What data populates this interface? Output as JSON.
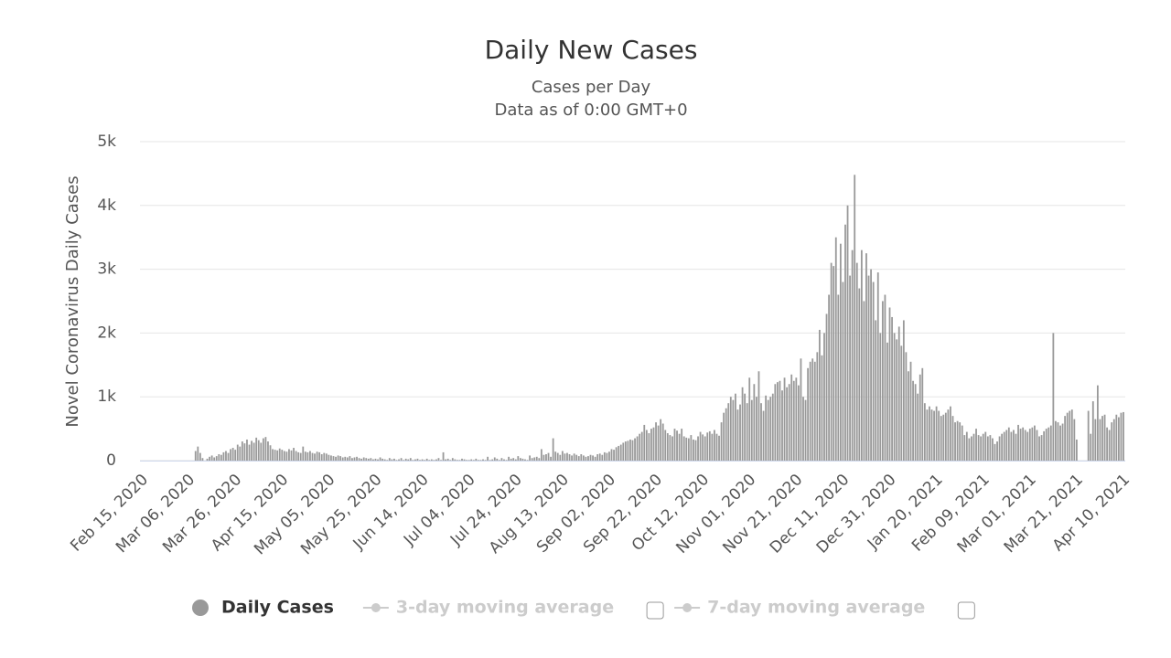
{
  "chart_data": {
    "type": "bar",
    "title": "Daily New Cases",
    "subtitle": [
      "Cases per Day",
      "Data as of 0:00 GMT+0"
    ],
    "y_axis_label": "Novel Coronavirus Daily Cases",
    "ylim": [
      0,
      5000
    ],
    "yticks": [
      0,
      {
        "value": 1000,
        "label": "1k"
      },
      {
        "value": 2000,
        "label": "2k"
      },
      {
        "value": 3000,
        "label": "3k"
      },
      {
        "value": 4000,
        "label": "4k"
      },
      {
        "value": 5000,
        "label": "5k"
      }
    ],
    "grid": true,
    "categories": [
      "Feb 15, 2020",
      null,
      null,
      null,
      null,
      null,
      null,
      null,
      null,
      null,
      null,
      null,
      null,
      null,
      null,
      null,
      null,
      null,
      null,
      null,
      "Mar 06, 2020",
      null,
      null,
      null,
      null,
      null,
      null,
      null,
      null,
      null,
      null,
      null,
      null,
      null,
      null,
      null,
      null,
      null,
      null,
      null,
      "Mar 26, 2020",
      null,
      null,
      null,
      null,
      null,
      null,
      null,
      null,
      null,
      null,
      null,
      null,
      null,
      null,
      null,
      null,
      null,
      null,
      null,
      "Apr 15, 2020",
      null,
      null,
      null,
      null,
      null,
      null,
      null,
      null,
      null,
      null,
      null,
      null,
      null,
      null,
      null,
      null,
      null,
      null,
      null,
      "May 05, 2020",
      null,
      null,
      null,
      null,
      null,
      null,
      null,
      null,
      null,
      null,
      null,
      null,
      null,
      null,
      null,
      null,
      null,
      null,
      null,
      "May 25, 2020",
      null,
      null,
      null,
      null,
      null,
      null,
      null,
      null,
      null,
      null,
      null,
      null,
      null,
      null,
      null,
      null,
      null,
      null,
      null,
      "Jun 14, 2020",
      null,
      null,
      null,
      null,
      null,
      null,
      null,
      null,
      null,
      null,
      null,
      null,
      null,
      null,
      null,
      null,
      null,
      null,
      null,
      "Jul 04, 2020",
      null,
      null,
      null,
      null,
      null,
      null,
      null,
      null,
      null,
      null,
      null,
      null,
      null,
      null,
      null,
      null,
      null,
      null,
      null,
      "Jul 24, 2020",
      null,
      null,
      null,
      null,
      null,
      null,
      null,
      null,
      null,
      null,
      null,
      null,
      null,
      null,
      null,
      null,
      null,
      null,
      null,
      "Aug 13, 2020",
      null,
      null,
      null,
      null,
      null,
      null,
      null,
      null,
      null,
      null,
      null,
      null,
      null,
      null,
      null,
      null,
      null,
      null,
      null,
      "Sep 02, 2020",
      null,
      null,
      null,
      null,
      null,
      null,
      null,
      null,
      null,
      null,
      null,
      null,
      null,
      null,
      null,
      null,
      null,
      null,
      null,
      "Sep 22, 2020",
      null,
      null,
      null,
      null,
      null,
      null,
      null,
      null,
      null,
      null,
      null,
      null,
      null,
      null,
      null,
      null,
      null,
      null,
      null,
      "Oct 12, 2020",
      null,
      null,
      null,
      null,
      null,
      null,
      null,
      null,
      null,
      null,
      null,
      null,
      null,
      null,
      null,
      null,
      null,
      null,
      null,
      "Nov 01, 2020",
      null,
      null,
      null,
      null,
      null,
      null,
      null,
      null,
      null,
      null,
      null,
      null,
      null,
      null,
      null,
      null,
      null,
      null,
      null,
      "Nov 21, 2020",
      null,
      null,
      null,
      null,
      null,
      null,
      null,
      null,
      null,
      null,
      null,
      null,
      null,
      null,
      null,
      null,
      null,
      null,
      null,
      "Dec 11, 2020",
      null,
      null,
      null,
      null,
      null,
      null,
      null,
      null,
      null,
      null,
      null,
      null,
      null,
      null,
      null,
      null,
      null,
      null,
      null,
      "Dec 31, 2020",
      null,
      null,
      null,
      null,
      null,
      null,
      null,
      null,
      null,
      null,
      null,
      null,
      null,
      null,
      null,
      null,
      null,
      null,
      null,
      "Jan 20, 2021",
      null,
      null,
      null,
      null,
      null,
      null,
      null,
      null,
      null,
      null,
      null,
      null,
      null,
      null,
      null,
      null,
      null,
      null,
      null,
      "Feb 09, 2021",
      null,
      null,
      null,
      null,
      null,
      null,
      null,
      null,
      null,
      null,
      null,
      null,
      null,
      null,
      null,
      null,
      null,
      null,
      null,
      "Mar 01, 2021",
      null,
      null,
      null,
      null,
      null,
      null,
      null,
      null,
      null,
      null,
      null,
      null,
      null,
      null,
      null,
      null,
      null,
      null,
      null,
      "Mar 21, 2021",
      null,
      null,
      null,
      null,
      null,
      null,
      null,
      null,
      null,
      null,
      null,
      null,
      null,
      null,
      null,
      null,
      null,
      null,
      null,
      "Apr 10, 2021"
    ],
    "series": [
      {
        "name": "Daily Cases",
        "color": "#999999",
        "values": [
          0,
          0,
          0,
          0,
          0,
          0,
          0,
          0,
          0,
          0,
          0,
          0,
          0,
          0,
          0,
          0,
          0,
          0,
          0,
          0,
          0,
          0,
          0,
          150,
          220,
          120,
          40,
          0,
          30,
          60,
          80,
          50,
          70,
          100,
          90,
          130,
          150,
          120,
          180,
          200,
          170,
          250,
          220,
          300,
          270,
          330,
          250,
          310,
          280,
          360,
          320,
          280,
          350,
          370,
          300,
          240,
          180,
          170,
          160,
          190,
          170,
          150,
          140,
          180,
          160,
          200,
          150,
          130,
          120,
          220,
          140,
          130,
          150,
          120,
          110,
          140,
          130,
          100,
          120,
          110,
          90,
          80,
          70,
          60,
          80,
          70,
          50,
          60,
          50,
          70,
          40,
          50,
          60,
          40,
          30,
          50,
          40,
          30,
          40,
          20,
          30,
          20,
          50,
          30,
          20,
          10,
          40,
          20,
          30,
          10,
          20,
          40,
          10,
          30,
          20,
          40,
          10,
          20,
          30,
          10,
          20,
          10,
          30,
          10,
          20,
          10,
          20,
          40,
          10,
          130,
          20,
          30,
          10,
          40,
          20,
          10,
          10,
          30,
          20,
          10,
          10,
          20,
          10,
          30,
          10,
          10,
          20,
          10,
          60,
          10,
          20,
          50,
          30,
          10,
          40,
          20,
          10,
          60,
          30,
          40,
          20,
          70,
          40,
          30,
          20,
          10,
          80,
          40,
          50,
          60,
          40,
          180,
          90,
          100,
          120,
          60,
          350,
          140,
          120,
          90,
          150,
          110,
          120,
          100,
          80,
          110,
          90,
          70,
          100,
          80,
          60,
          70,
          90,
          80,
          60,
          100,
          110,
          90,
          130,
          120,
          140,
          180,
          170,
          210,
          230,
          250,
          280,
          300,
          310,
          330,
          320,
          350,
          380,
          420,
          450,
          560,
          480,
          430,
          500,
          520,
          600,
          550,
          650,
          580,
          480,
          430,
          400,
          380,
          500,
          470,
          420,
          500,
          380,
          360,
          350,
          400,
          330,
          320,
          380,
          450,
          410,
          380,
          440,
          460,
          420,
          480,
          420,
          390,
          600,
          750,
          820,
          900,
          1000,
          950,
          1050,
          800,
          880,
          1150,
          1050,
          900,
          1300,
          950,
          1200,
          1000,
          1400,
          900,
          780,
          1020,
          950,
          1000,
          1050,
          1200,
          1230,
          1250,
          1100,
          1300,
          1150,
          1200,
          1350,
          1250,
          1300,
          1180,
          1600,
          1000,
          950,
          1450,
          1550,
          1600,
          1550,
          1700,
          2050,
          1650,
          2000,
          2300,
          2600,
          3100,
          3050,
          3500,
          2600,
          3400,
          2800,
          3700,
          4000,
          2900,
          3300,
          4480,
          3100,
          2700,
          3300,
          2500,
          3250,
          2900,
          3000,
          2800,
          2200,
          2950,
          2000,
          2500,
          2600,
          1850,
          2400,
          2250,
          2000,
          1900,
          2100,
          1800,
          2200,
          1700,
          1400,
          1550,
          1250,
          1200,
          1050,
          1350,
          1450,
          900,
          800,
          850,
          800,
          780,
          850,
          780,
          700,
          720,
          750,
          800,
          850,
          700,
          600,
          620,
          600,
          550,
          400,
          450,
          350,
          380,
          420,
          500,
          400,
          380,
          420,
          450,
          380,
          400,
          350,
          260,
          300,
          380,
          420,
          450,
          480,
          520,
          450,
          480,
          420,
          560,
          500,
          520,
          480,
          450,
          500,
          520,
          550,
          480,
          380,
          400,
          460,
          500,
          520,
          550,
          2000,
          620,
          600,
          550,
          580,
          700,
          750,
          780,
          800,
          650,
          330,
          0,
          0,
          0,
          0,
          780,
          420,
          930,
          650,
          1180,
          650,
          700,
          720,
          520,
          480,
          600,
          650,
          720,
          680,
          750,
          760
        ]
      }
    ],
    "legend": [
      {
        "name": "Daily Cases",
        "active": true,
        "checkbox": false
      },
      {
        "name": "3-day moving average",
        "active": false,
        "checkbox": true
      },
      {
        "name": "7-day moving average",
        "active": false,
        "checkbox": true
      }
    ]
  }
}
